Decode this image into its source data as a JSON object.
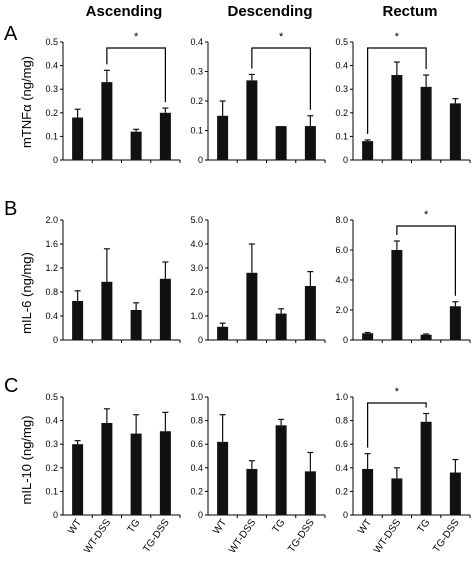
{
  "columns": [
    "Ascending",
    "Descending",
    "Rectum"
  ],
  "rows": [
    {
      "letter": "A",
      "ylabel": "mTNFα (ng/mg)"
    },
    {
      "letter": "B",
      "ylabel": "mIL-6 (ng/mg)"
    },
    {
      "letter": "C",
      "ylabel": "mIL-10 (ng/mg)"
    }
  ],
  "colors": {
    "bar": "#111111",
    "axis": "#000000"
  },
  "chart_data": [
    {
      "type": "bar",
      "panel": "A-Ascending",
      "categories": [
        "WT",
        "WT-DSS",
        "TG",
        "TG-DSS"
      ],
      "values": [
        0.18,
        0.33,
        0.12,
        0.2
      ],
      "errors": [
        0.035,
        0.05,
        0.01,
        0.02
      ],
      "ylim": [
        0,
        0.5
      ],
      "yticks": [
        "0",
        "0.1",
        "0.2",
        "0.3",
        "0.4",
        "0.5"
      ],
      "significance": {
        "from": 1,
        "to": 3,
        "label": "*"
      },
      "show_xlabels": false
    },
    {
      "type": "bar",
      "panel": "A-Descending",
      "categories": [
        "WT",
        "WT-DSS",
        "TG",
        "TG-DSS"
      ],
      "values": [
        0.15,
        0.27,
        0.115,
        0.115
      ],
      "errors": [
        0.05,
        0.02,
        0.0,
        0.035
      ],
      "ylim": [
        0,
        0.4
      ],
      "yticks": [
        "0",
        "0.1",
        "0.2",
        "0.3",
        "0.4"
      ],
      "significance": {
        "from": 1,
        "to": 3,
        "label": "*"
      },
      "show_xlabels": false
    },
    {
      "type": "bar",
      "panel": "A-Rectum",
      "categories": [
        "WT",
        "WT-DSS",
        "TG",
        "TG-DSS"
      ],
      "values": [
        0.08,
        0.36,
        0.31,
        0.24
      ],
      "errors": [
        0.005,
        0.055,
        0.05,
        0.02
      ],
      "ylim": [
        0,
        0.5
      ],
      "yticks": [
        "0",
        "0.1",
        "0.2",
        "0.3",
        "0.4",
        "0.5"
      ],
      "significance": {
        "from": 0,
        "to": 2,
        "label": "*"
      },
      "show_xlabels": false
    },
    {
      "type": "bar",
      "panel": "B-Ascending",
      "categories": [
        "WT",
        "WT-DSS",
        "TG",
        "TG-DSS"
      ],
      "values": [
        0.65,
        0.97,
        0.5,
        1.02
      ],
      "errors": [
        0.17,
        0.55,
        0.12,
        0.28
      ],
      "ylim": [
        0,
        2.0
      ],
      "yticks": [
        "0",
        "0.4",
        "0.8",
        "1.2",
        "1.6",
        "2.0"
      ],
      "significance": null,
      "show_xlabels": false
    },
    {
      "type": "bar",
      "panel": "B-Descending",
      "categories": [
        "WT",
        "WT-DSS",
        "TG",
        "TG-DSS"
      ],
      "values": [
        0.55,
        2.8,
        1.1,
        2.25
      ],
      "errors": [
        0.15,
        1.2,
        0.2,
        0.6
      ],
      "ylim": [
        0,
        5.0
      ],
      "yticks": [
        "0",
        "1.0",
        "2.0",
        "3.0",
        "4.0",
        "5.0"
      ],
      "significance": null,
      "show_xlabels": false
    },
    {
      "type": "bar",
      "panel": "B-Rectum",
      "categories": [
        "WT",
        "WT-DSS",
        "TG",
        "TG-DSS"
      ],
      "values": [
        0.45,
        6.0,
        0.35,
        2.25
      ],
      "errors": [
        0.05,
        0.6,
        0.05,
        0.3
      ],
      "ylim": [
        0,
        8.0
      ],
      "yticks": [
        "0",
        "2.0",
        "4.0",
        "6.0",
        "8.0"
      ],
      "significance": {
        "from": 1,
        "to": 3,
        "label": "*"
      },
      "show_xlabels": false
    },
    {
      "type": "bar",
      "panel": "C-Ascending",
      "categories": [
        "WT",
        "WT-DSS",
        "TG",
        "TG-DSS"
      ],
      "values": [
        0.3,
        0.39,
        0.345,
        0.355
      ],
      "errors": [
        0.015,
        0.06,
        0.08,
        0.08
      ],
      "ylim": [
        0,
        0.5
      ],
      "yticks": [
        "0",
        "0.1",
        "0.2",
        "0.3",
        "0.4",
        "0.5"
      ],
      "significance": null,
      "show_xlabels": true
    },
    {
      "type": "bar",
      "panel": "C-Descending",
      "categories": [
        "WT",
        "WT-DSS",
        "TG",
        "TG-DSS"
      ],
      "values": [
        0.62,
        0.39,
        0.76,
        0.37
      ],
      "errors": [
        0.23,
        0.07,
        0.05,
        0.16
      ],
      "ylim": [
        0,
        1.0
      ],
      "yticks": [
        "0",
        "0.2",
        "0.4",
        "0.6",
        "0.8",
        "1.0"
      ],
      "significance": null,
      "show_xlabels": true
    },
    {
      "type": "bar",
      "panel": "C-Rectum",
      "categories": [
        "WT",
        "WT-DSS",
        "TG",
        "TG-DSS"
      ],
      "values": [
        0.39,
        0.31,
        0.79,
        0.36
      ],
      "errors": [
        0.13,
        0.09,
        0.07,
        0.11
      ],
      "ylim": [
        0,
        1.0
      ],
      "yticks": [
        "0",
        "0.2",
        "0.4",
        "0.6",
        "0.8",
        "1.0"
      ],
      "significance": {
        "from": 0,
        "to": 2,
        "label": "*"
      },
      "show_xlabels": true
    }
  ]
}
